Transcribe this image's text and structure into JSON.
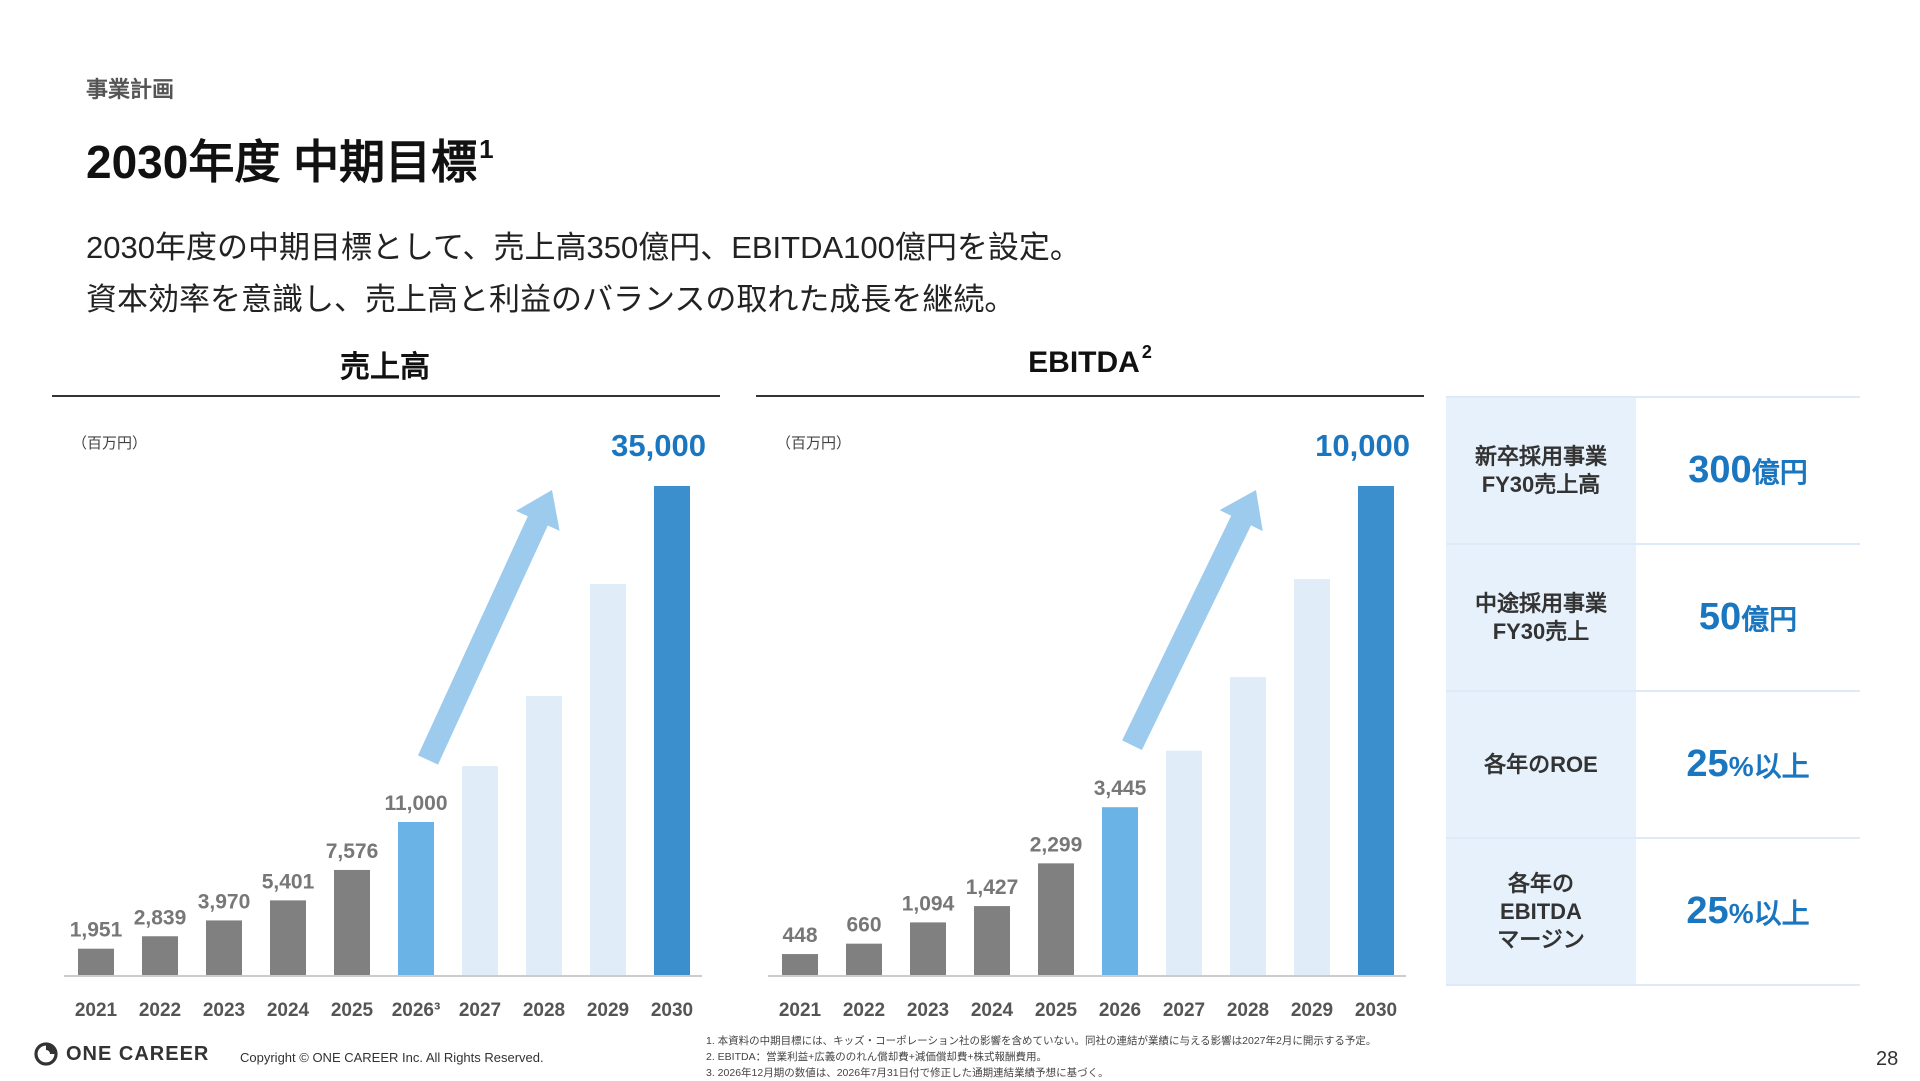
{
  "header": {
    "section": "事業計画",
    "title": "2030年度 中期目標",
    "title_sup": "1"
  },
  "lead": [
    "2030年度の中期目標として、売上高350億円、EBITDA100億円を設定。",
    "資本効率を意識し、売上高と利益のバランスの取れた成長を継続。"
  ],
  "colors": {
    "actual": "#808080",
    "current": "#6ab3e6",
    "projected": "#e0edf8",
    "target": "#3b8fcc",
    "arrow": "#9ccbee",
    "target_label": "#1b76c0"
  },
  "chart_data": [
    {
      "type": "bar",
      "title": "売上高",
      "title_sup": "",
      "unit": "（百万円）",
      "categories": [
        "2021",
        "2022",
        "2023",
        "2024",
        "2025",
        "2026³",
        "2027",
        "2028",
        "2029",
        "2030"
      ],
      "values": [
        1951,
        2839,
        3970,
        5401,
        7576,
        11000,
        15000,
        20000,
        28000,
        35000
      ],
      "labels": [
        "1,951",
        "2,839",
        "3,970",
        "5,401",
        "7,576",
        "11,000",
        "",
        "",
        "",
        "35,000"
      ],
      "bar_kind": [
        "actual",
        "actual",
        "actual",
        "actual",
        "actual",
        "current",
        "projected",
        "projected",
        "projected",
        "target"
      ],
      "ylim": [
        0,
        35000
      ],
      "grid": false,
      "legend": "none"
    },
    {
      "type": "bar",
      "title": "EBITDA",
      "title_sup": "2",
      "unit": "（百万円）",
      "categories": [
        "2021",
        "2022",
        "2023",
        "2024",
        "2025",
        "2026",
        "2027",
        "2028",
        "2029",
        "2030"
      ],
      "values": [
        448,
        660,
        1094,
        1427,
        2299,
        3445,
        4600,
        6100,
        8100,
        10000
      ],
      "labels": [
        "448",
        "660",
        "1,094",
        "1,427",
        "2,299",
        "3,445",
        "",
        "",
        "",
        "10,000"
      ],
      "bar_kind": [
        "actual",
        "actual",
        "actual",
        "actual",
        "actual",
        "current",
        "projected",
        "projected",
        "projected",
        "target"
      ],
      "ylim": [
        0,
        10000
      ],
      "grid": false,
      "legend": "none"
    }
  ],
  "kpis": [
    {
      "label": "新卒採用事業\nFY30売上高",
      "value": "300",
      "unit": "億円"
    },
    {
      "label": "中途採用事業\nFY30売上",
      "value": "50",
      "unit": "億円"
    },
    {
      "label": "各年のROE",
      "value": "25",
      "unit": "%以上"
    },
    {
      "label": "各年の\nEBITDA\nマージン",
      "value": "25",
      "unit": "%以上"
    }
  ],
  "footer": {
    "logo": "ONE CAREER",
    "copyright": "Copyright © ONE CAREER Inc. All Rights Reserved.",
    "footnotes": [
      "1. 本資料の中期目標には、キッズ・コーポレーション社の影響を含めていない。同社の連結が業績に与える影響は2027年2月に開示する予定。",
      "2. EBITDA：営業利益+広義ののれん償却費+減価償却費+株式報酬費用。",
      "3. 2026年12月期の数値は、2026年7月31日付で修正した通期連結業績予想に基づく。"
    ],
    "page_number": "28"
  }
}
